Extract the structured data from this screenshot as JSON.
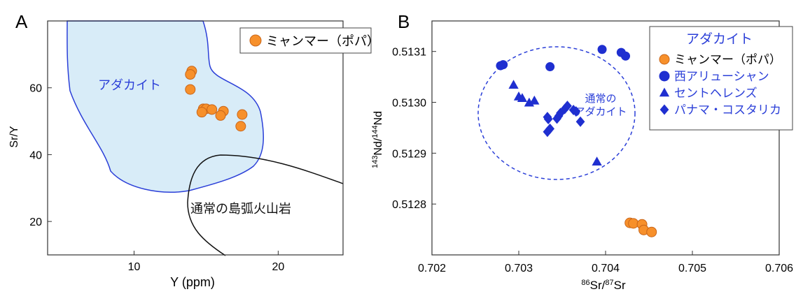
{
  "chart_data": [
    {
      "type": "scatter",
      "panel_label": "A",
      "xlabel": "Y (ppm)",
      "ylabel": "Sr/Y",
      "xlim": [
        4,
        24.5
      ],
      "ylim": [
        10,
        80
      ],
      "x_ticks": [
        "10",
        "20"
      ],
      "y_ticks": [
        "20",
        "40",
        "60"
      ],
      "grid": false,
      "legend_position": "top-right",
      "regions": [
        {
          "label": "アダカイト",
          "fill": "#d8ecf8",
          "stroke": "#2b3fd8"
        },
        {
          "label": "通常の島弧火山岩",
          "stroke": "#111111"
        }
      ],
      "series": [
        {
          "name": "ミャンマー（ポパ）",
          "marker": "circle",
          "color": "#f7902b",
          "points": [
            [
              14.0,
              65.0
            ],
            [
              13.9,
              64.0
            ],
            [
              13.9,
              59.5
            ],
            [
              14.8,
              53.7
            ],
            [
              15.0,
              53.7
            ],
            [
              15.4,
              53.5
            ],
            [
              14.7,
              52.7
            ],
            [
              16.2,
              53.0
            ],
            [
              16.0,
              51.7
            ],
            [
              17.5,
              52.0
            ],
            [
              17.4,
              48.5
            ]
          ]
        }
      ]
    },
    {
      "type": "scatter",
      "panel_label": "B",
      "xlabel": "86Sr/87Sr",
      "xlabel_parts": {
        "sup1": "86",
        "base1": "Sr/",
        "sup2": "87",
        "base2": "Sr"
      },
      "ylabel": "143Nd/144Nd",
      "ylabel_parts": {
        "sup1": "143",
        "base1": "Nd/",
        "sup2": "144",
        "base2": "Nd"
      },
      "xlim": [
        0.702,
        0.706
      ],
      "ylim": [
        0.5127,
        0.51316
      ],
      "x_ticks": [
        "0.702",
        "0.703",
        "0.704",
        "0.705",
        "0.706"
      ],
      "y_ticks": [
        "0.5128",
        "0.5129",
        "0.5130",
        "0.5131"
      ],
      "grid": false,
      "legend_title": "アダカイト",
      "legend_position": "top-right",
      "region_label": [
        "通常の",
        "アダカイト"
      ],
      "series": [
        {
          "name": "ミャンマー（ポパ）",
          "marker": "circle",
          "color": "#f7902b",
          "points": [
            [
              0.70428,
              0.512763
            ],
            [
              0.70432,
              0.512762
            ],
            [
              0.70442,
              0.51276
            ],
            [
              0.70444,
              0.512749
            ],
            [
              0.70453,
              0.512745
            ]
          ]
        },
        {
          "name": "西アリューシャン",
          "marker": "circle",
          "color": "#1f2fd0",
          "points": [
            [
              0.70282,
              0.513074
            ],
            [
              0.70279,
              0.513072
            ],
            [
              0.70336,
              0.51307
            ],
            [
              0.70396,
              0.513104
            ],
            [
              0.70418,
              0.513098
            ],
            [
              0.70423,
              0.513091
            ]
          ]
        },
        {
          "name": "セントヘレンズ",
          "marker": "triangle",
          "color": "#1f2fd0",
          "points": [
            [
              0.70294,
              0.513034
            ],
            [
              0.703,
              0.513011
            ],
            [
              0.70304,
              0.513008
            ],
            [
              0.70312,
              0.512999
            ],
            [
              0.70318,
              0.513003
            ],
            [
              0.7039,
              0.512883
            ]
          ]
        },
        {
          "name": "パナマ・コスタリカ",
          "marker": "diamond",
          "color": "#1f2fd0",
          "points": [
            [
              0.70333,
              0.512971
            ],
            [
              0.70334,
              0.512967
            ],
            [
              0.70346,
              0.512973
            ],
            [
              0.70348,
              0.512979
            ],
            [
              0.70353,
              0.512987
            ],
            [
              0.70356,
              0.512993
            ],
            [
              0.70344,
              0.512968
            ],
            [
              0.70363,
              0.512985
            ],
            [
              0.70366,
              0.512982
            ],
            [
              0.70371,
              0.512962
            ],
            [
              0.70336,
              0.512948
            ],
            [
              0.70333,
              0.512942
            ]
          ]
        }
      ]
    }
  ]
}
